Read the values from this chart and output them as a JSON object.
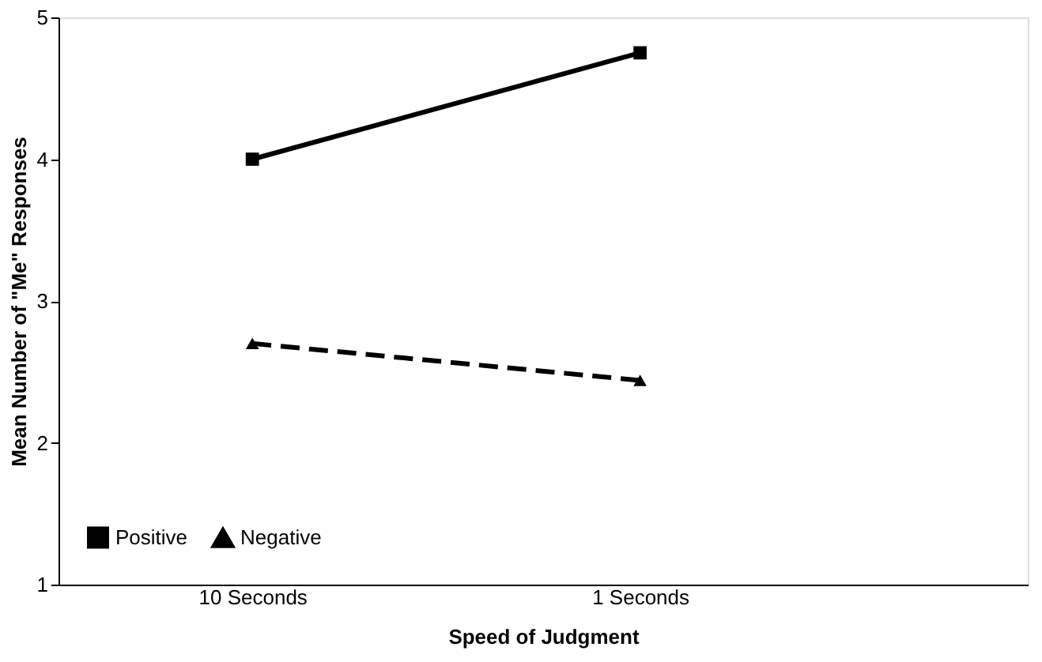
{
  "chart_data": {
    "type": "line",
    "xlabel": "Speed of Judgment",
    "ylabel": "Mean Number of \"Me\" Responses",
    "categories": [
      "10 Seconds",
      "1 Seconds"
    ],
    "series": [
      {
        "name": "Positive",
        "color": "#000000",
        "values": [
          4.0,
          4.75
        ],
        "marker": "square",
        "line_style": "solid"
      },
      {
        "name": "Negative",
        "color": "#000000",
        "values": [
          2.7,
          2.44
        ],
        "marker": "triangle",
        "line_style": "dashed"
      }
    ],
    "ylim": [
      1,
      5
    ],
    "yticks": [
      1,
      2,
      3,
      4,
      5
    ],
    "grid": false,
    "legend": "bottom left"
  }
}
